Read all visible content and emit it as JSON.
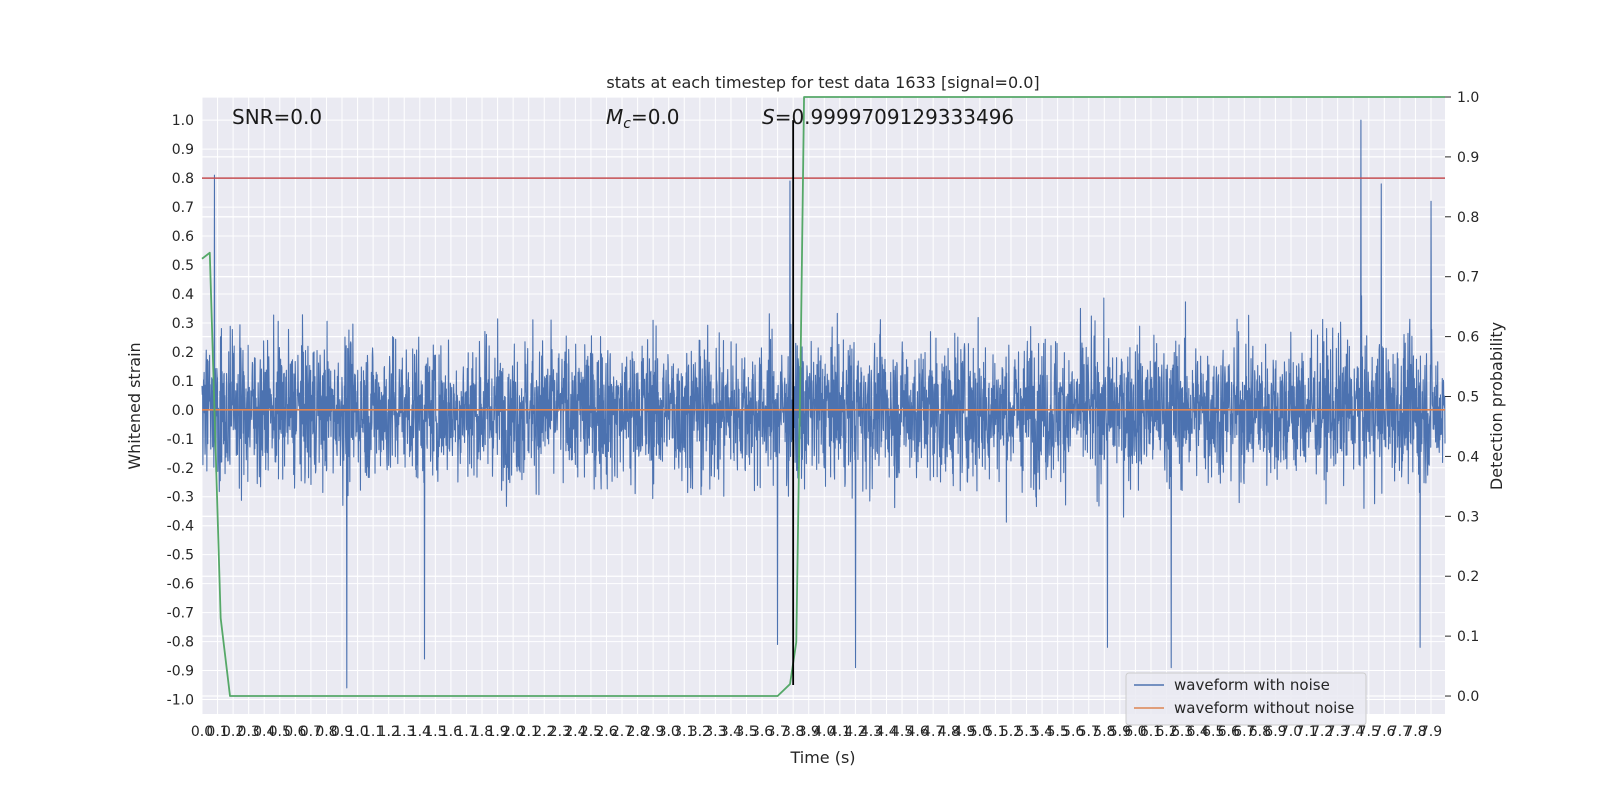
{
  "chart_data": {
    "type": "line",
    "title": "stats at each timestep for test data 1633 [signal=0.0]",
    "xlabel": "Time (s)",
    "ylabel": "Whitened strain",
    "y2label": "Detection probability",
    "xlim": [
      0.0,
      7.99
    ],
    "ylim": [
      -1.05,
      1.08
    ],
    "y2lim": [
      -0.03,
      1.0
    ],
    "xticks": [
      0.0,
      0.1,
      0.2,
      0.3,
      0.4,
      0.5,
      0.6,
      0.7,
      0.8,
      0.9,
      1.0,
      1.1,
      1.2,
      1.3,
      1.4,
      1.5,
      1.6,
      1.7,
      1.8,
      1.9,
      2.0,
      2.1,
      2.2,
      2.3,
      2.4,
      2.5,
      2.6,
      2.7,
      2.8,
      2.9,
      3.0,
      3.1,
      3.2,
      3.3,
      3.4,
      3.5,
      3.6,
      3.7,
      3.8,
      3.9,
      4.0,
      4.1,
      4.2,
      4.3,
      4.4,
      4.5,
      4.6,
      4.7,
      4.8,
      4.9,
      5.0,
      5.1,
      5.2,
      5.3,
      5.4,
      5.5,
      5.6,
      5.7,
      5.8,
      5.9,
      6.0,
      6.1,
      6.2,
      6.3,
      6.4,
      6.5,
      6.6,
      6.7,
      6.8,
      6.9,
      7.0,
      7.1,
      7.2,
      7.3,
      7.4,
      7.5,
      7.6,
      7.7,
      7.8,
      7.9
    ],
    "yticks": [
      -1.0,
      -0.9,
      -0.8,
      -0.7,
      -0.6,
      -0.5,
      -0.4,
      -0.3,
      -0.2,
      -0.1,
      0.0,
      0.1,
      0.2,
      0.3,
      0.4,
      0.5,
      0.6,
      0.7,
      0.8,
      0.9,
      1.0
    ],
    "y2ticks": [
      0.0,
      0.1,
      0.2,
      0.3,
      0.4,
      0.5,
      0.6,
      0.7,
      0.8,
      0.9,
      1.0
    ],
    "grid": true,
    "legend_position": "lower right",
    "series": [
      {
        "name": "waveform with noise",
        "color": "#4c72b0",
        "axis": "left",
        "sample_count": 4096,
        "typical_range": [
          -0.45,
          0.45
        ],
        "peaks": [
          {
            "x": 0.08,
            "y": 0.81
          },
          {
            "x": 0.93,
            "y": -0.96
          },
          {
            "x": 1.43,
            "y": -0.86
          },
          {
            "x": 3.7,
            "y": -0.81
          },
          {
            "x": 3.78,
            "y": 0.79
          },
          {
            "x": 4.2,
            "y": -0.89
          },
          {
            "x": 5.82,
            "y": -0.82
          },
          {
            "x": 6.23,
            "y": -0.89
          },
          {
            "x": 7.45,
            "y": 1.0
          },
          {
            "x": 7.58,
            "y": 0.78
          },
          {
            "x": 7.83,
            "y": -0.82
          },
          {
            "x": 7.9,
            "y": 0.72
          }
        ]
      },
      {
        "name": "waveform without noise",
        "color": "#dd8452",
        "axis": "left",
        "x": [
          0.0,
          7.99
        ],
        "y": [
          0.0,
          0.0
        ]
      },
      {
        "name": "",
        "color": "#55a868",
        "axis": "right",
        "x": [
          0.0,
          0.05,
          0.12,
          0.18,
          3.6,
          3.7,
          3.78,
          3.82,
          3.85,
          3.87,
          7.99
        ],
        "y": [
          0.73,
          0.74,
          0.13,
          0.0,
          0.0,
          0.0,
          0.02,
          0.09,
          0.6,
          1.0,
          1.0
        ]
      }
    ],
    "threshold": {
      "value": 0.8,
      "color": "#c44e52"
    },
    "marker_line": {
      "x": 3.8,
      "y_range": [
        -0.95,
        1.0
      ],
      "color": "#000000"
    },
    "annotations": {
      "snr": "SNR=0.0",
      "mc_symbol": "M",
      "mc_sub": "c",
      "mc_value": "=0.0",
      "s_symbol": "S",
      "s_value": "=0.9999709129333496"
    }
  }
}
